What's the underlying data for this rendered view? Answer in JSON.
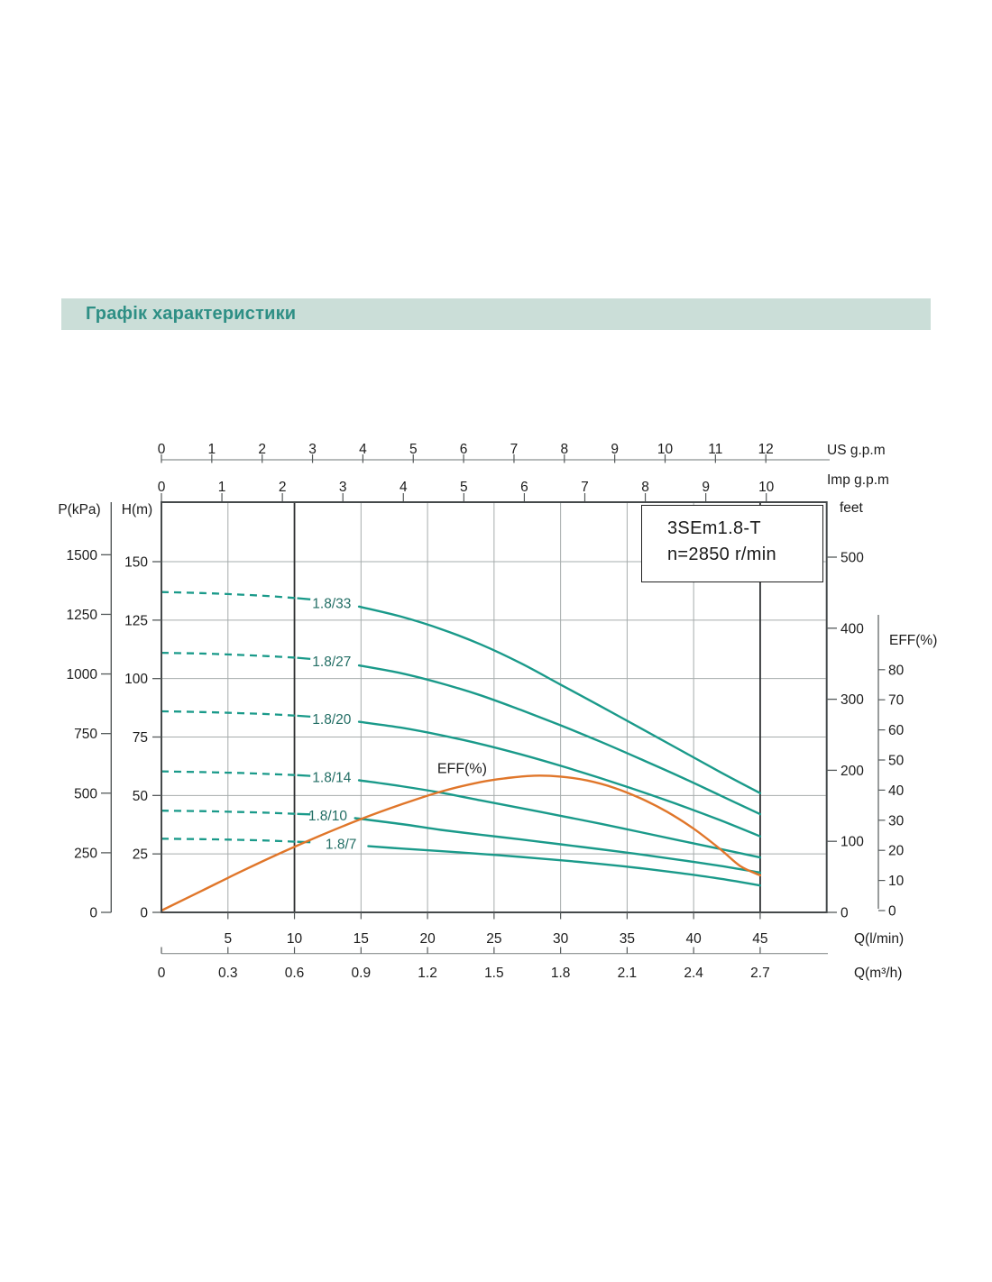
{
  "title_bar": {
    "text": "Графік характеристики"
  },
  "model_box": {
    "line1": "3SEm1.8-T",
    "line2": "n=2850 r/min"
  },
  "colors": {
    "teal": "#1a9a8a",
    "orange": "#e0762a",
    "title_text": "#2e8f85",
    "title_bg": "#cbded8",
    "grid": "#a6acac",
    "frame": "#45494b",
    "black_line": "#2f3133",
    "axis_gray": "#8b9091",
    "tick": "#555a5b",
    "text": "#1c1c1c",
    "curve_label": "#236e65"
  },
  "chart_data": {
    "type": "line",
    "title": "3SEm1.8-T",
    "subtitle": "n=2850 r/min",
    "xlabel": "Q(l/min)",
    "ylabel": "H(m)",
    "operating_lines_lmin": [
      10,
      45
    ],
    "axes": {
      "us_gpm": {
        "label": "US  g.p.m",
        "ticks": [
          0,
          1,
          2,
          3,
          4,
          5,
          6,
          7,
          8,
          9,
          10,
          11,
          12
        ]
      },
      "imp_gpm": {
        "label": "Imp  g.p.m",
        "ticks": [
          0,
          1,
          2,
          3,
          4,
          5,
          6,
          7,
          8,
          9,
          10
        ]
      },
      "p_kpa": {
        "label": "P(kPa)",
        "ticks": [
          0,
          250,
          500,
          750,
          1000,
          1250,
          1500
        ]
      },
      "h_m": {
        "label": "H(m)",
        "ticks": [
          0,
          25,
          50,
          75,
          100,
          125,
          150
        ]
      },
      "feet": {
        "label": "feet",
        "ticks": [
          0,
          100,
          200,
          300,
          400,
          500
        ]
      },
      "eff": {
        "label": "EFF(%)",
        "ticks": [
          0,
          10,
          20,
          30,
          40,
          50,
          60,
          70,
          80
        ]
      },
      "q_lmin": {
        "label": "Q(l/min)",
        "ticks": [
          5,
          10,
          15,
          20,
          25,
          30,
          35,
          40,
          45
        ]
      },
      "q_m3h": {
        "label": "Q(m³/h)",
        "ticks": [
          0,
          0.3,
          0.6,
          0.9,
          1.2,
          1.5,
          1.8,
          2.1,
          2.4,
          2.7
        ]
      }
    },
    "head_curves": [
      {
        "label": "1.8/33",
        "label_pos": [
          12.8,
          132.3
        ],
        "dashed": [
          [
            0,
            137
          ],
          [
            3,
            136.6
          ],
          [
            6,
            135.9
          ],
          [
            8,
            135.3
          ],
          [
            10.2,
            134.4
          ]
        ],
        "lead": [
          [
            10.2,
            134.4
          ],
          [
            11.2,
            133.9
          ]
        ],
        "solid": [
          [
            14.85,
            130.8
          ],
          [
            18,
            126.5
          ],
          [
            21,
            121.2
          ],
          [
            24,
            114.6
          ],
          [
            27,
            106.6
          ],
          [
            30,
            97.4
          ],
          [
            33,
            88.2
          ],
          [
            36,
            78.8
          ],
          [
            39,
            69.4
          ],
          [
            42,
            60
          ],
          [
            45,
            51
          ]
        ]
      },
      {
        "label": "1.8/27",
        "label_pos": [
          12.8,
          107.4
        ],
        "dashed": [
          [
            0,
            111
          ],
          [
            3,
            110.7
          ],
          [
            6,
            110.1
          ],
          [
            8,
            109.6
          ],
          [
            10.2,
            108.9
          ]
        ],
        "lead": [
          [
            10.2,
            108.9
          ],
          [
            11.2,
            108.4
          ]
        ],
        "solid": [
          [
            14.85,
            105.6
          ],
          [
            18,
            102.3
          ],
          [
            21,
            98
          ],
          [
            24,
            92.8
          ],
          [
            27,
            86.6
          ],
          [
            30,
            80
          ],
          [
            33,
            73
          ],
          [
            36,
            65.6
          ],
          [
            39,
            58
          ],
          [
            42,
            50
          ],
          [
            45,
            42
          ]
        ]
      },
      {
        "label": "1.8/20",
        "label_pos": [
          12.8,
          82.7
        ],
        "dashed": [
          [
            0,
            86
          ],
          [
            3,
            85.7
          ],
          [
            6,
            85.2
          ],
          [
            8,
            84.8
          ],
          [
            10.2,
            84.1
          ]
        ],
        "lead": [
          [
            10.2,
            84.1
          ],
          [
            11.2,
            83.7
          ]
        ],
        "solid": [
          [
            14.85,
            81.5
          ],
          [
            18,
            79
          ],
          [
            21,
            75.8
          ],
          [
            24,
            72
          ],
          [
            27,
            67.6
          ],
          [
            30,
            62.7
          ],
          [
            33,
            57.4
          ],
          [
            36,
            51.8
          ],
          [
            39,
            45.8
          ],
          [
            42,
            39.4
          ],
          [
            45,
            32.5
          ]
        ]
      },
      {
        "label": "1.8/14",
        "label_pos": [
          12.8,
          57.9
        ],
        "dashed": [
          [
            0,
            60.3
          ],
          [
            3,
            60
          ],
          [
            6,
            59.6
          ],
          [
            8,
            59.2
          ],
          [
            10.2,
            58.7
          ]
        ],
        "lead": [
          [
            10.2,
            58.7
          ],
          [
            11.2,
            58.4
          ]
        ],
        "solid": [
          [
            14.85,
            56.5
          ],
          [
            18,
            54
          ],
          [
            21,
            51.2
          ],
          [
            24,
            47.9
          ],
          [
            27,
            44.6
          ],
          [
            30,
            41.3
          ],
          [
            33,
            37.9
          ],
          [
            36,
            34.3
          ],
          [
            39,
            30.7
          ],
          [
            42,
            27.1
          ],
          [
            45,
            23.5
          ]
        ]
      },
      {
        "label": "1.8/10",
        "label_pos": [
          12.5,
          41.4
        ],
        "dashed": [
          [
            0,
            43.5
          ],
          [
            3,
            43.3
          ],
          [
            6,
            42.9
          ],
          [
            8,
            42.6
          ],
          [
            10.2,
            42.1
          ]
        ],
        "lead": [
          [
            10.2,
            42.1
          ],
          [
            11.2,
            41.9
          ]
        ],
        "solid": [
          [
            14.55,
            40.3
          ],
          [
            18,
            37.8
          ],
          [
            21,
            35.3
          ],
          [
            24,
            33.2
          ],
          [
            27,
            31.2
          ],
          [
            30,
            29.1
          ],
          [
            33,
            27
          ],
          [
            36,
            24.8
          ],
          [
            39,
            22.4
          ],
          [
            42,
            19.9
          ],
          [
            45,
            17
          ]
        ]
      },
      {
        "label": "1.8/7",
        "label_pos": [
          13.5,
          29.3
        ],
        "dashed": [
          [
            0,
            31.5
          ],
          [
            3,
            31.3
          ],
          [
            6,
            31
          ],
          [
            8,
            30.7
          ],
          [
            10.2,
            30.2
          ]
        ],
        "lead": [
          [
            10.2,
            30.2
          ],
          [
            11.2,
            30
          ]
        ],
        "solid": [
          [
            15.55,
            28.3
          ],
          [
            18,
            27.3
          ],
          [
            21,
            26.2
          ],
          [
            24,
            25
          ],
          [
            27,
            23.7
          ],
          [
            30,
            22.3
          ],
          [
            33,
            20.7
          ],
          [
            36,
            18.9
          ],
          [
            39,
            16.8
          ],
          [
            42,
            14.4
          ],
          [
            45,
            11.5
          ]
        ]
      }
    ],
    "eff_curve": {
      "label": "EFF(%)",
      "label_pos": [
        22.6,
        47.3
      ],
      "points": [
        [
          0,
          0
        ],
        [
          3,
          6.5
        ],
        [
          6,
          13
        ],
        [
          9,
          19.2
        ],
        [
          12,
          25
        ],
        [
          15,
          30.4
        ],
        [
          18,
          35.2
        ],
        [
          21,
          39.5
        ],
        [
          24,
          42.7
        ],
        [
          26,
          44
        ],
        [
          28,
          44.8
        ],
        [
          30,
          44.5
        ],
        [
          32,
          43.2
        ],
        [
          34,
          40.8
        ],
        [
          36,
          37.3
        ],
        [
          38,
          32.8
        ],
        [
          40,
          27.2
        ],
        [
          42,
          20.4
        ],
        [
          43.5,
          14.8
        ],
        [
          45,
          11.7
        ]
      ]
    }
  }
}
